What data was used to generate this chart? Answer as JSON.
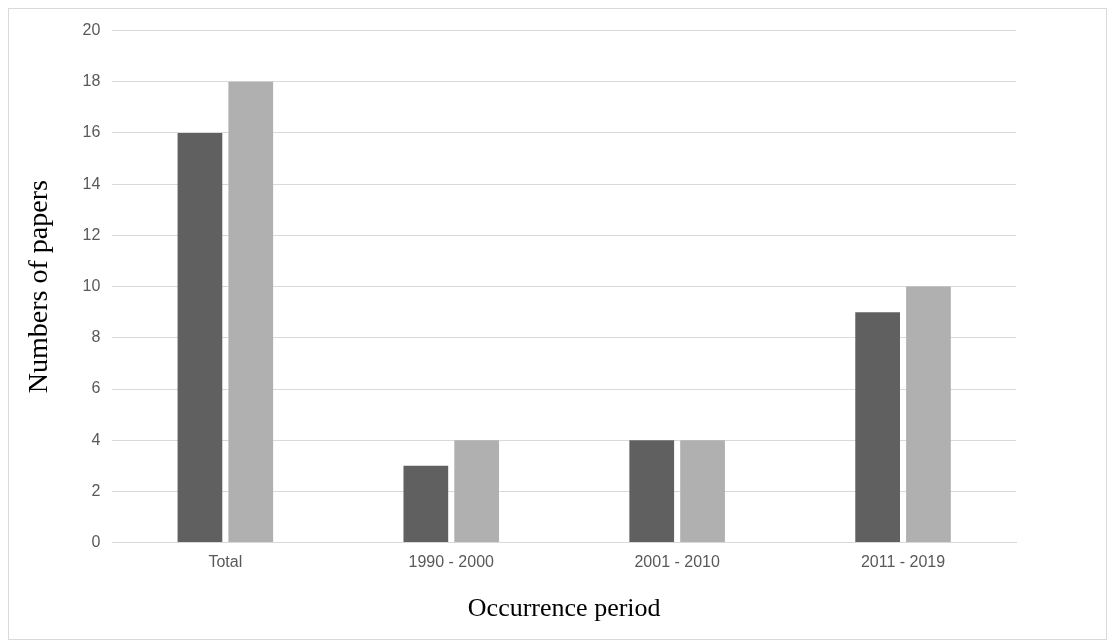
{
  "chart_data": {
    "type": "bar",
    "xlabel": "Occurrence period",
    "ylabel": "Numbers of papers",
    "categories": [
      "Total",
      "1990 - 2000",
      "2001 - 2010",
      "2011 - 2019"
    ],
    "series": [
      {
        "color": "#606060",
        "values": [
          16,
          3,
          4,
          9
        ]
      },
      {
        "color": "#b0b0b0",
        "values": [
          18,
          4,
          4,
          10
        ]
      }
    ],
    "ylim": [
      0,
      20
    ],
    "yticks": [
      0,
      2,
      4,
      6,
      8,
      10,
      12,
      14,
      16,
      18,
      20
    ],
    "grid": "y",
    "legend": false
  }
}
